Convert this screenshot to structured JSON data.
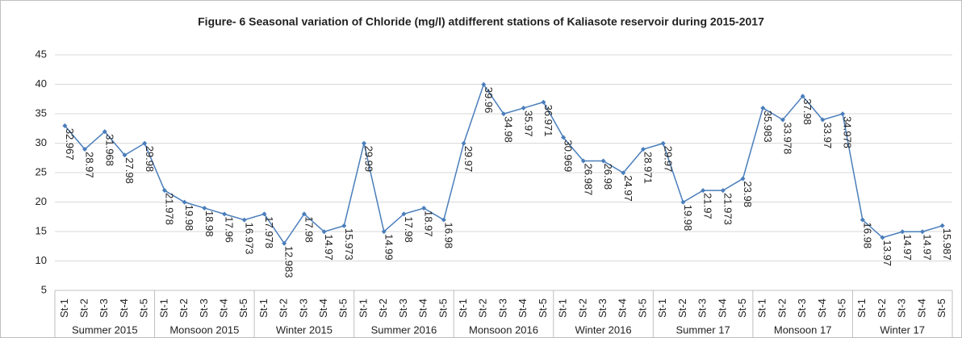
{
  "chart_data": {
    "type": "line",
    "title": "Figure- 6 Seasonal variation of Chloride (mg/l)  atdifferent stations of Kaliasote reservoir during 2015-2017",
    "categories": [
      "St-1",
      "St-2",
      "St-3",
      "St-4",
      "St-5",
      "St-1",
      "St-2",
      "St-3",
      "St-4",
      "St-5",
      "St-1",
      "St-2",
      "St-3",
      "St-4",
      "St-5",
      "St-1",
      "St-2",
      "St-3",
      "St-4",
      "St-5",
      "St-1",
      "St-2",
      "St-3",
      "St-4",
      "St-5",
      "St-1",
      "St-2",
      "St-3",
      "St-4",
      "St-5",
      "St-1",
      "St-2",
      "St-3",
      "St-4",
      "St-5",
      "St-1",
      "St-2",
      "St-3",
      "St-4",
      "St-5",
      "St-1",
      "St-2",
      "St-3",
      "St-4",
      "St-5"
    ],
    "groups": [
      "Summer 2015",
      "Monsoon 2015",
      "Winter 2015",
      "Summer 2016",
      "Monsoon 2016",
      "Winter 2016",
      "Summer 17",
      "Monsoon 17",
      "Winter 17"
    ],
    "values": [
      32.967,
      28.97,
      31.968,
      27.98,
      29.98,
      21.978,
      19.98,
      18.98,
      17.96,
      16.973,
      17.978,
      12.983,
      17.98,
      14.97,
      15.973,
      29.99,
      14.99,
      17.98,
      18.97,
      16.98,
      29.97,
      39.96,
      34.98,
      35.97,
      36.971,
      30.969,
      26.987,
      26.98,
      24.97,
      28.971,
      29.97,
      19.98,
      21.97,
      21.973,
      23.98,
      35.983,
      33.978,
      37.98,
      33.97,
      34.978,
      16.98,
      13.97,
      14.97,
      14.97,
      15.987
    ],
    "color": "#4a7ebb",
    "ylim": [
      5,
      45
    ],
    "yticks": [
      5,
      10,
      15,
      20,
      25,
      30,
      35,
      40,
      45
    ],
    "grid": true
  }
}
